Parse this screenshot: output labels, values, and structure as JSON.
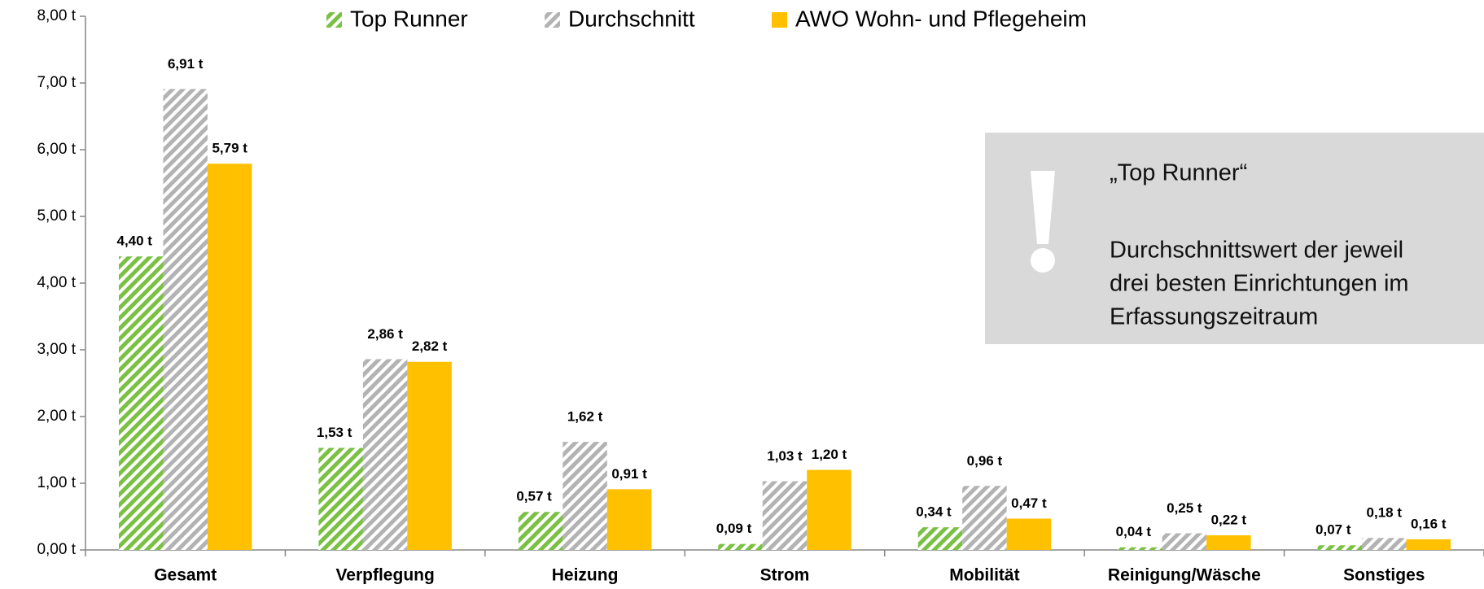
{
  "chart_data": {
    "type": "bar",
    "categories": [
      "Gesamt",
      "Verpflegung",
      "Heizung",
      "Strom",
      "Mobilität",
      "Reinigung/Wäsche",
      "Sonstiges"
    ],
    "series": [
      {
        "name": "Top Runner",
        "color": "#7ac143",
        "pattern": "hatch",
        "values": [
          4.4,
          1.53,
          0.57,
          0.09,
          0.34,
          0.04,
          0.07
        ],
        "value_labels": [
          "4,40 t",
          "1,53 t",
          "0,57 t",
          "0,09 t",
          "0,34 t",
          "0,04 t",
          "0,07 t"
        ]
      },
      {
        "name": "Durchschnitt",
        "color": "#b3b3b3",
        "pattern": "hatch",
        "values": [
          6.91,
          2.86,
          1.62,
          1.03,
          0.96,
          0.25,
          0.18
        ],
        "value_labels": [
          "6,91 t",
          "2,86 t",
          "1,62 t",
          "1,03 t",
          "0,96 t",
          "0,25 t",
          "0,18 t"
        ]
      },
      {
        "name": "AWO Wohn- und Pflegeheim",
        "color": "#ffc000",
        "pattern": "solid",
        "values": [
          5.79,
          2.82,
          0.91,
          1.2,
          0.47,
          0.22,
          0.16
        ],
        "value_labels": [
          "5,79 t",
          "2,82 t",
          "0,91 t",
          "1,20 t",
          "0,47 t",
          "0,22 t",
          "0,16 t"
        ]
      }
    ],
    "ylim": [
      0,
      8
    ],
    "yticks": [
      {
        "value": 0,
        "label": "0,00 t"
      },
      {
        "value": 1,
        "label": "1,00 t"
      },
      {
        "value": 2,
        "label": "2,00 t"
      },
      {
        "value": 3,
        "label": "3,00 t"
      },
      {
        "value": 4,
        "label": "4,00 t"
      },
      {
        "value": 5,
        "label": "5,00 t"
      },
      {
        "value": 6,
        "label": "6,00 t"
      },
      {
        "value": 7,
        "label": "7,00 t"
      },
      {
        "value": 8,
        "label": "8,00 t"
      }
    ],
    "legend": "top",
    "grid": false,
    "callout": {
      "title": "„Top Runner“",
      "lines": [
        "Durchschnittswert der jeweil",
        "drei besten Einrichtungen im",
        "Erfassungszeitraum"
      ]
    }
  }
}
